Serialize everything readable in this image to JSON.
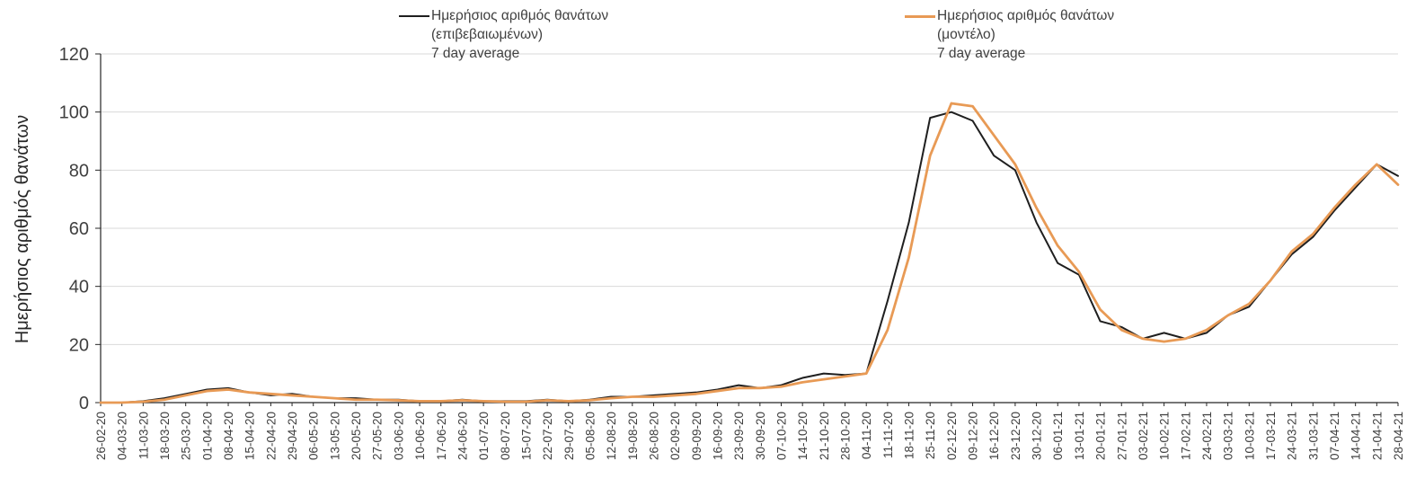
{
  "chart_data": {
    "type": "line",
    "title": "",
    "xlabel": "",
    "ylabel": "Ημερήσιος αριθμός θανάτων",
    "ylim": [
      0,
      120
    ],
    "yticks": [
      0,
      20,
      40,
      60,
      80,
      100,
      120
    ],
    "grid": true,
    "legend_position": "top",
    "categories": [
      "26-02-20",
      "04-03-20",
      "11-03-20",
      "18-03-20",
      "25-03-20",
      "01-04-20",
      "08-04-20",
      "15-04-20",
      "22-04-20",
      "29-04-20",
      "06-05-20",
      "13-05-20",
      "20-05-20",
      "27-05-20",
      "03-06-20",
      "10-06-20",
      "17-06-20",
      "24-06-20",
      "01-07-20",
      "08-07-20",
      "15-07-20",
      "22-07-20",
      "29-07-20",
      "05-08-20",
      "12-08-20",
      "19-08-20",
      "26-08-20",
      "02-09-20",
      "09-09-20",
      "16-09-20",
      "23-09-20",
      "30-09-20",
      "07-10-20",
      "14-10-20",
      "21-10-20",
      "28-10-20",
      "04-11-20",
      "11-11-20",
      "18-11-20",
      "25-11-20",
      "02-12-20",
      "09-12-20",
      "16-12-20",
      "23-12-20",
      "30-12-20",
      "06-01-21",
      "13-01-21",
      "20-01-21",
      "27-01-21",
      "03-02-21",
      "10-02-21",
      "17-02-21",
      "24-02-21",
      "03-03-21",
      "10-03-21",
      "17-03-21",
      "24-03-21",
      "31-03-21",
      "07-04-21",
      "14-04-21",
      "21-04-21",
      "28-04-21"
    ],
    "series": [
      {
        "name": "Ημερήσιος αριθμός θανάτων (επιβεβαιωμένων) 7 day average",
        "color": "#1f1f1f",
        "width": 2,
        "values": [
          0,
          0,
          0.5,
          1.5,
          3,
          4.5,
          5,
          3.5,
          2.5,
          3,
          2,
          1.5,
          1.5,
          1,
          1,
          0.5,
          0.5,
          1,
          0.5,
          0.5,
          0.5,
          1,
          0.5,
          1,
          2,
          2,
          2.5,
          3,
          3.5,
          4.5,
          6,
          5,
          6,
          8.5,
          10,
          9.5,
          10,
          35,
          62,
          98,
          100,
          97,
          85,
          80,
          62,
          48,
          44,
          28,
          26,
          22,
          24,
          22,
          24,
          30,
          33,
          42,
          51,
          57,
          66,
          74,
          82,
          78
        ]
      },
      {
        "name": "Ημερήσιος αριθμός θανάτων (μοντέλο) 7 day average",
        "color": "#E89A55",
        "width": 2.8,
        "values": [
          0,
          0,
          0.3,
          1,
          2.5,
          4,
          4.5,
          3.5,
          3,
          2.5,
          2,
          1.5,
          1,
          1,
          0.8,
          0.5,
          0.5,
          0.8,
          0.5,
          0.3,
          0.3,
          0.8,
          0.5,
          0.8,
          1.5,
          2,
          2,
          2.5,
          3,
          4,
          5,
          5,
          5.5,
          7,
          8,
          9,
          10,
          25,
          50,
          85,
          103,
          102,
          92,
          82,
          67,
          54,
          45,
          32,
          25,
          22,
          21,
          22,
          25,
          30,
          34,
          42,
          52,
          58,
          67,
          75,
          82,
          75
        ]
      }
    ]
  },
  "axes": {
    "y_title": "Ημερήσιος αριθμός θανάτων"
  },
  "legend": {
    "item1": {
      "line1": "Ημερήσιος αριθμός θανάτων",
      "line2": "(επιβεβαιωμένων)",
      "line3": "7 day average"
    },
    "item2": {
      "line1": "Ημερήσιος αριθμός θανάτων",
      "line2": "(μοντέλο)",
      "line3": "7 day average"
    }
  },
  "colors": {
    "confirmed_line": "#1f1f1f",
    "model_line": "#E89A55",
    "gridline": "#d9d9d9",
    "axis": "#262626",
    "tick_label": "#404040"
  }
}
